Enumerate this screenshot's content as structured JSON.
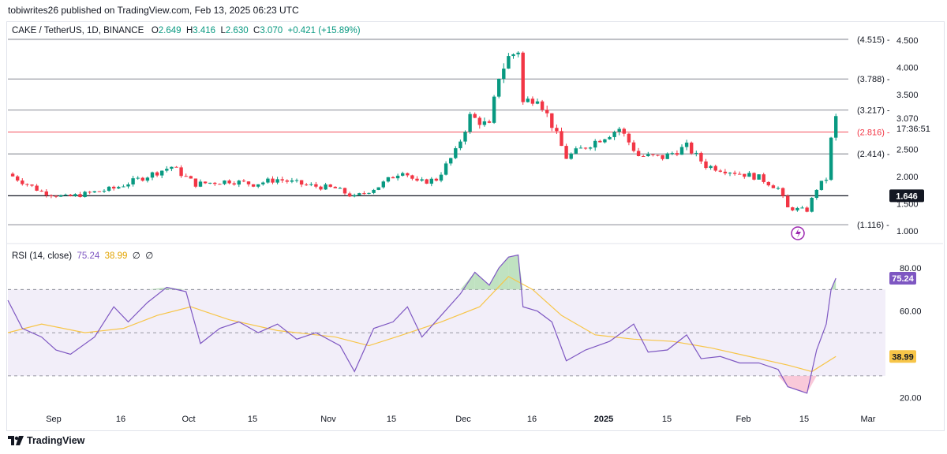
{
  "header": {
    "publisher": "tobiwrites26 published on TradingView.com, Feb 13, 2025 06:23 UTC"
  },
  "legend": {
    "symbol": "CAKE / TetherUS, 1D, BINANCE",
    "o_label": "O",
    "o_value": "2.649",
    "h_label": "H",
    "h_value": "3.416",
    "l_label": "L",
    "l_value": "2.630",
    "c_label": "C",
    "c_value": "3.070",
    "change": "+0.421 (+15.89%)"
  },
  "rsi_legend": {
    "label": "RSI (14, close)",
    "rsi_value": "75.24",
    "ma_value": "38.99",
    "extra1": "∅",
    "extra2": "∅"
  },
  "footer": {
    "brand": "TradingView"
  },
  "colors": {
    "up": "#089981",
    "down": "#f23645",
    "rsi": "#7e57c2",
    "rsi_ma": "#f7c548",
    "band": "#ede7f6"
  },
  "chart_data": [
    {
      "type": "candlestick",
      "title": "CAKE / TetherUS, 1D, BINANCE",
      "ylim": [
        0.9,
        4.6
      ],
      "y_ticks": [
        "4.500",
        "4.000",
        "3.500",
        "2.500",
        "2.000",
        "1.500",
        "1.000"
      ],
      "x_ticks": [
        "Sep",
        "16",
        "Oct",
        "15",
        "Nov",
        "15",
        "Dec",
        "16",
        "2025",
        "15",
        "Feb",
        "15",
        "Mar"
      ],
      "levels": [
        {
          "label": "(4.515)",
          "value": 4.515,
          "color": "#787b86"
        },
        {
          "label": "(3.788)",
          "value": 3.788,
          "color": "#787b86"
        },
        {
          "label": "(3.217)",
          "value": 3.217,
          "color": "#787b86"
        },
        {
          "label": "(2.816)",
          "value": 2.816,
          "color": "#f23645"
        },
        {
          "label": "(2.414)",
          "value": 2.414,
          "color": "#787b86"
        },
        {
          "label": "1.646",
          "value": 1.646,
          "color": "#131722"
        },
        {
          "label": "(1.116)",
          "value": 1.116,
          "color": "#787b86"
        }
      ],
      "last_price": {
        "value": 3.07,
        "label": "3.070",
        "countdown": "17:36:51"
      },
      "close_path": [
        [
          "2024-08-25",
          2.05
        ],
        [
          "2024-09-01",
          1.72
        ],
        [
          "2024-09-06",
          1.62
        ],
        [
          "2024-09-10",
          1.68
        ],
        [
          "2024-09-16",
          1.78
        ],
        [
          "2024-09-22",
          1.98
        ],
        [
          "2024-09-28",
          2.18
        ],
        [
          "2024-10-03",
          1.86
        ],
        [
          "2024-10-10",
          1.92
        ],
        [
          "2024-10-15",
          1.86
        ],
        [
          "2024-10-20",
          1.95
        ],
        [
          "2024-10-26",
          1.84
        ],
        [
          "2024-11-01",
          1.78
        ],
        [
          "2024-11-05",
          1.62
        ],
        [
          "2024-11-10",
          1.82
        ],
        [
          "2024-11-15",
          2.12
        ],
        [
          "2024-11-18",
          1.88
        ],
        [
          "2024-11-22",
          1.95
        ],
        [
          "2024-11-26",
          2.45
        ],
        [
          "2024-11-29",
          3.1
        ],
        [
          "2024-12-03",
          2.92
        ],
        [
          "2024-12-05",
          3.85
        ],
        [
          "2024-12-07",
          4.18
        ],
        [
          "2024-12-09",
          4.32
        ],
        [
          "2024-12-10",
          3.35
        ],
        [
          "2024-12-13",
          3.48
        ],
        [
          "2024-12-16",
          2.95
        ],
        [
          "2024-12-19",
          2.35
        ],
        [
          "2024-12-24",
          2.6
        ],
        [
          "2024-12-30",
          2.88
        ],
        [
          "2025-01-03",
          2.38
        ],
        [
          "2025-01-08",
          2.35
        ],
        [
          "2025-01-13",
          2.55
        ],
        [
          "2025-01-17",
          2.2
        ],
        [
          "2025-01-22",
          2.1
        ],
        [
          "2025-01-28",
          1.98
        ],
        [
          "2025-02-01",
          1.78
        ],
        [
          "2025-02-03",
          1.42
        ],
        [
          "2025-02-07",
          1.38
        ],
        [
          "2025-02-09",
          1.78
        ],
        [
          "2025-02-11",
          1.96
        ],
        [
          "2025-02-12",
          2.67
        ],
        [
          "2025-02-13",
          3.07
        ]
      ]
    },
    {
      "type": "line",
      "title": "RSI (14, close)",
      "ylim": [
        15,
        88
      ],
      "y_ticks": [
        "80.00",
        "60.00",
        "20.00"
      ],
      "bands": {
        "upper": 70,
        "middle": 50,
        "lower": 30
      },
      "last_rsi": {
        "value": 75.24,
        "label": "75.24"
      },
      "last_ma": {
        "value": 38.99,
        "label": "38.99"
      },
      "series": [
        {
          "name": "RSI",
          "points": [
            [
              "2024-08-25",
              65
            ],
            [
              "2024-08-28",
              52
            ],
            [
              "2024-09-01",
              48
            ],
            [
              "2024-09-04",
              42
            ],
            [
              "2024-09-07",
              40
            ],
            [
              "2024-09-12",
              48
            ],
            [
              "2024-09-16",
              62
            ],
            [
              "2024-09-19",
              55
            ],
            [
              "2024-09-23",
              64
            ],
            [
              "2024-09-27",
              71
            ],
            [
              "2024-10-01",
              69
            ],
            [
              "2024-10-04",
              45
            ],
            [
              "2024-10-08",
              52
            ],
            [
              "2024-10-12",
              55
            ],
            [
              "2024-10-16",
              50
            ],
            [
              "2024-10-20",
              54
            ],
            [
              "2024-10-24",
              47
            ],
            [
              "2024-10-28",
              50
            ],
            [
              "2024-11-02",
              44
            ],
            [
              "2024-11-05",
              32
            ],
            [
              "2024-11-09",
              52
            ],
            [
              "2024-11-13",
              55
            ],
            [
              "2024-11-16",
              62
            ],
            [
              "2024-11-19",
              48
            ],
            [
              "2024-11-23",
              58
            ],
            [
              "2024-11-27",
              68
            ],
            [
              "2024-11-30",
              78
            ],
            [
              "2024-12-03",
              72
            ],
            [
              "2024-12-05",
              80
            ],
            [
              "2024-12-07",
              85
            ],
            [
              "2024-12-09",
              86
            ],
            [
              "2024-12-10",
              62
            ],
            [
              "2024-12-13",
              60
            ],
            [
              "2024-12-16",
              55
            ],
            [
              "2024-12-19",
              37
            ],
            [
              "2024-12-23",
              42
            ],
            [
              "2024-12-28",
              46
            ],
            [
              "2025-01-02",
              54
            ],
            [
              "2025-01-05",
              41
            ],
            [
              "2025-01-09",
              42
            ],
            [
              "2025-01-13",
              49
            ],
            [
              "2025-01-16",
              38
            ],
            [
              "2025-01-20",
              39
            ],
            [
              "2025-01-24",
              36
            ],
            [
              "2025-01-28",
              36
            ],
            [
              "2025-02-01",
              33
            ],
            [
              "2025-02-03",
              25
            ],
            [
              "2025-02-07",
              22
            ],
            [
              "2025-02-09",
              42
            ],
            [
              "2025-02-11",
              54
            ],
            [
              "2025-02-12",
              70
            ],
            [
              "2025-02-13",
              75.24
            ]
          ]
        },
        {
          "name": "RSI-based MA",
          "points": [
            [
              "2024-08-25",
              50
            ],
            [
              "2024-09-01",
              54
            ],
            [
              "2024-09-10",
              50
            ],
            [
              "2024-09-18",
              52
            ],
            [
              "2024-09-25",
              58
            ],
            [
              "2024-10-02",
              62
            ],
            [
              "2024-10-10",
              56
            ],
            [
              "2024-10-20",
              51
            ],
            [
              "2024-11-01",
              48
            ],
            [
              "2024-11-08",
              44
            ],
            [
              "2024-11-15",
              49
            ],
            [
              "2024-11-23",
              55
            ],
            [
              "2024-12-01",
              62
            ],
            [
              "2024-12-07",
              76
            ],
            [
              "2024-12-12",
              70
            ],
            [
              "2024-12-18",
              58
            ],
            [
              "2024-12-25",
              49
            ],
            [
              "2025-01-02",
              47
            ],
            [
              "2025-01-10",
              46
            ],
            [
              "2025-01-18",
              43
            ],
            [
              "2025-01-26",
              39
            ],
            [
              "2025-02-03",
              35
            ],
            [
              "2025-02-08",
              32
            ],
            [
              "2025-02-13",
              38.99
            ]
          ]
        }
      ]
    }
  ]
}
